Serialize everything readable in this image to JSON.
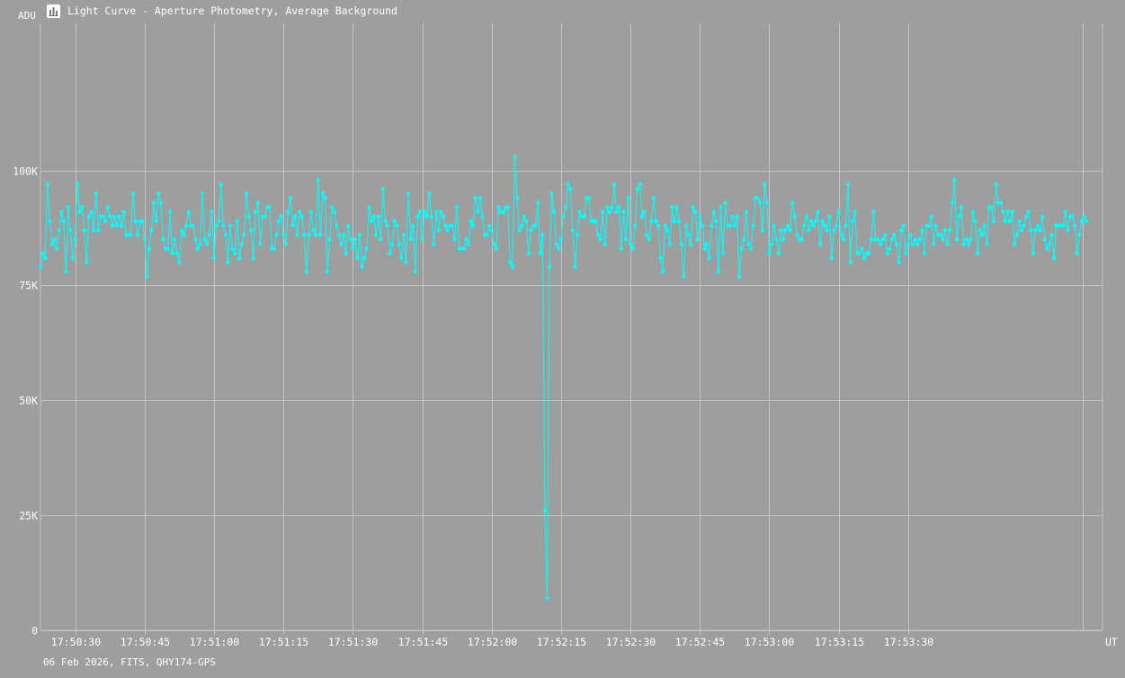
{
  "window": {
    "title": "Light Curve - Aperture Photometry, Average Background",
    "icon": "chart-icon"
  },
  "footer": {
    "text": "06 Feb 2026, FITS, QHY174-GPS"
  },
  "colors": {
    "background": "#9e9e9e",
    "grid": "#c4c4c4",
    "series": "#00ffff",
    "text": "#ffffff"
  },
  "chart_data": {
    "type": "line",
    "title": "Light Curve - Aperture Photometry, Average Background",
    "ylabel": "ADU",
    "xlabel": "UT",
    "ylim": [
      0,
      132000
    ],
    "xlim": [
      "17:50:22.5",
      "17:54:12"
    ],
    "grid": true,
    "y_ticks": [
      {
        "value": 0,
        "label": "0"
      },
      {
        "value": 25000,
        "label": "25K"
      },
      {
        "value": 50000,
        "label": "50K"
      },
      {
        "value": 75000,
        "label": "75K"
      },
      {
        "value": 100000,
        "label": "100K"
      }
    ],
    "x_ticks": [
      "17:50:30",
      "17:50:45",
      "17:51:00",
      "17:51:15",
      "17:51:30",
      "17:51:45",
      "17:52:00",
      "17:52:15",
      "17:52:30",
      "17:52:45",
      "17:53:00",
      "17:53:15",
      "17:53:30"
    ],
    "series": [
      {
        "start": "17:50:22.5",
        "interval_s": 0.5,
        "values": [
          79000,
          82000,
          81000,
          97000,
          89000,
          84000,
          85000,
          83000,
          87000,
          91000,
          89000,
          78000,
          92000,
          87000,
          81000,
          85000,
          97000,
          91000,
          92000,
          87000,
          80000,
          90000,
          91000,
          87000,
          95000,
          87000,
          90000,
          90000,
          89000,
          92000,
          90000,
          88000,
          90000,
          88000,
          90000,
          88000,
          91000,
          86000,
          86000,
          86000,
          95000,
          89000,
          86000,
          89000,
          89000,
          85000,
          77000,
          83000,
          87000,
          93000,
          89000,
          95000,
          93000,
          85000,
          83000,
          83000,
          91000,
          82000,
          85000,
          82000,
          80000,
          87000,
          86000,
          88000,
          91000,
          88000,
          88000,
          85000,
          83000,
          84000,
          95000,
          85000,
          84000,
          86000,
          91000,
          81000,
          88000,
          89000,
          97000,
          88000,
          86000,
          80000,
          88000,
          83000,
          82000,
          89000,
          81000,
          84000,
          86000,
          95000,
          90000,
          87000,
          81000,
          91000,
          93000,
          84000,
          90000,
          90000,
          92000,
          92000,
          83000,
          83000,
          86000,
          89000,
          90000,
          86000,
          84000,
          91000,
          94000,
          88000,
          90000,
          86000,
          91000,
          90000,
          86000,
          78000,
          86000,
          91000,
          87000,
          86000,
          98000,
          86000,
          95000,
          94000,
          78000,
          85000,
          92000,
          91000,
          88000,
          86000,
          84000,
          86000,
          82000,
          88000,
          85000,
          83000,
          85000,
          81000,
          86000,
          79000,
          81000,
          83000,
          92000,
          89000,
          90000,
          86000,
          90000,
          85000,
          96000,
          89000,
          88000,
          82000,
          84000,
          89000,
          88000,
          84000,
          81000,
          86000,
          80000,
          95000,
          85000,
          88000,
          78000,
          90000,
          91000,
          85000,
          91000,
          90000,
          95000,
          90000,
          84000,
          91000,
          87000,
          91000,
          90000,
          88000,
          87000,
          88000,
          88000,
          85000,
          92000,
          83000,
          83000,
          83000,
          85000,
          84000,
          89000,
          88000,
          94000,
          91000,
          94000,
          90000,
          86000,
          86000,
          88000,
          87000,
          84000,
          83000,
          92000,
          91000,
          91000,
          92000,
          92000,
          80000,
          79000,
          103000,
          94000,
          87000,
          88000,
          90000,
          89000,
          82000,
          87000,
          88000,
          88000,
          93000,
          82000,
          86000,
          26000,
          7000,
          79000,
          95000,
          91000,
          84000,
          83000,
          85000,
          90000,
          92000,
          97000,
          96000,
          87000,
          79000,
          86000,
          91000,
          90000,
          90000,
          94000,
          94000,
          89000,
          89000,
          89000,
          86000,
          85000,
          91000,
          84000,
          92000,
          91000,
          92000,
          97000,
          91000,
          92000,
          83000,
          91000,
          85000,
          94000,
          84000,
          83000,
          88000,
          96000,
          97000,
          90000,
          91000,
          86000,
          85000,
          89000,
          94000,
          89000,
          88000,
          81000,
          78000,
          88000,
          87000,
          84000,
          92000,
          89000,
          92000,
          89000,
          84000,
          77000,
          88000,
          86000,
          84000,
          92000,
          91000,
          85000,
          90000,
          88000,
          83000,
          84000,
          81000,
          88000,
          91000,
          89000,
          78000,
          92000,
          82000,
          93000,
          88000,
          88000,
          90000,
          88000,
          90000,
          77000,
          83000,
          85000,
          91000,
          84000,
          83000,
          88000,
          94000,
          94000,
          93000,
          87000,
          97000,
          93000,
          82000,
          84000,
          88000,
          85000,
          82000,
          87000,
          85000,
          87000,
          88000,
          87000,
          93000,
          90000,
          86000,
          85000,
          85000,
          88000,
          90000,
          87000,
          89000,
          88000,
          89000,
          91000,
          84000,
          89000,
          88000,
          87000,
          90000,
          81000,
          87000,
          88000,
          91000,
          86000,
          85000,
          88000,
          97000,
          80000,
          89000,
          91000,
          82000,
          82000,
          83000,
          81000,
          82000,
          82000,
          85000,
          91000,
          85000,
          85000,
          84000,
          85000,
          86000,
          82000,
          83000,
          85000,
          86000,
          84000,
          80000,
          87000,
          88000,
          82000,
          84000,
          86000,
          84000,
          85000,
          84000,
          85000,
          87000,
          82000,
          88000,
          88000,
          90000,
          84000,
          88000,
          86000,
          86000,
          85000,
          87000,
          84000,
          87000,
          93000,
          98000,
          85000,
          90000,
          92000,
          84000,
          85000,
          84000,
          85000,
          91000,
          89000,
          82000,
          87000,
          86000,
          88000,
          84000,
          92000,
          92000,
          89000,
          97000,
          93000,
          93000,
          91000,
          89000,
          91000,
          89000,
          91000,
          84000,
          86000,
          89000,
          87000,
          88000,
          90000,
          91000,
          87000,
          82000,
          87000,
          88000,
          87000,
          90000,
          85000,
          83000,
          84000,
          86000,
          81000,
          88000,
          88000,
          88000,
          88000,
          91000,
          87000,
          90000,
          90000,
          88000,
          82000,
          86000,
          89000,
          90000,
          89000
        ]
      }
    ]
  }
}
